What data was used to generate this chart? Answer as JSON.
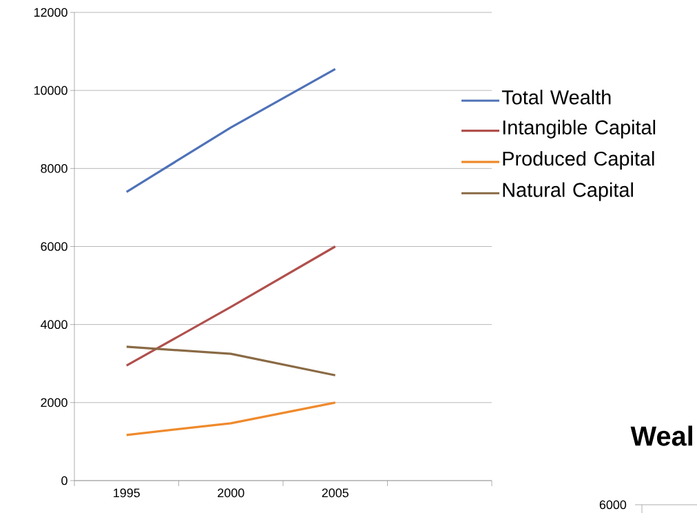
{
  "chart_data": {
    "type": "line",
    "categories": [
      "1995",
      "2000",
      "2005",
      null
    ],
    "series": [
      {
        "name": "Total Wealth",
        "color": "#4f72b8",
        "values": [
          7400,
          9050,
          10550,
          null
        ]
      },
      {
        "name": "Intangible Capital",
        "color": "#b0504d",
        "values": [
          2950,
          4450,
          6000,
          null
        ]
      },
      {
        "name": "Produced Capital",
        "color": "#ef8a2c",
        "values": [
          1170,
          1470,
          2000,
          null
        ]
      },
      {
        "name": "Natural Capital",
        "color": "#8a6a45",
        "values": [
          3430,
          3250,
          2700,
          null
        ]
      }
    ],
    "ylim": [
      0,
      12000
    ],
    "yticks": [
      0,
      2000,
      4000,
      6000,
      8000,
      10000,
      12000
    ],
    "grid": "y",
    "legend": "right",
    "marker": "none",
    "line_style": "solid",
    "annotations": [
      "Weal",
      "6000"
    ]
  }
}
